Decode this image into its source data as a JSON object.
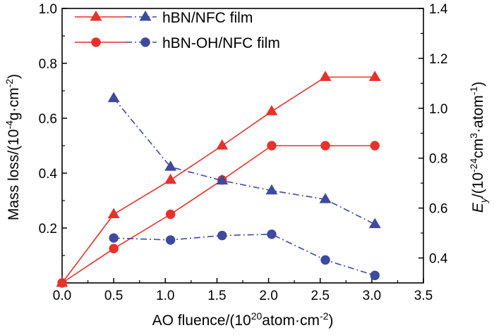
{
  "chart_data": {
    "type": "line",
    "x": [
      0.0,
      0.5,
      1.05,
      1.55,
      2.03,
      2.55,
      3.03
    ],
    "xlim": [
      0.0,
      3.5
    ],
    "xticks": [
      "0.0",
      "0.5",
      "1.0",
      "1.5",
      "2.0",
      "2.5",
      "3.0",
      "3.5"
    ],
    "xlabel": {
      "pre": "AO fluence/(10",
      "sup": "20",
      "post": "atom·cm",
      "sup2": "-2",
      "close": ")"
    },
    "y_left": {
      "label": {
        "pre": "Mass loss/(10",
        "sup": "-4",
        "mid": "g·cm",
        "sup2": "-2",
        "close": ")"
      },
      "lim": [
        0.0,
        1.0
      ],
      "ticks": [
        "0.2",
        "0.4",
        "0.6",
        "0.8",
        "1.0"
      ]
    },
    "y_right": {
      "label": {
        "var": "E",
        "sub": "y",
        "pre": "/(10",
        "sup": "-24",
        "mid": "cm",
        "sup2": "3",
        "mid2": "·atom",
        "sup3": "-1",
        "close": ")"
      },
      "lim": [
        0.3,
        1.4
      ],
      "ticks": [
        "0.4",
        "0.6",
        "0.8",
        "1.0",
        "1.2",
        "1.4"
      ]
    },
    "series": [
      {
        "name": "hBN/NFC film",
        "axis": "left",
        "marker": "triangle",
        "style": "solid",
        "color": "#e8312a",
        "x": [
          0.0,
          0.5,
          1.05,
          1.55,
          2.03,
          2.55,
          3.03
        ],
        "values": [
          0.0,
          0.25,
          0.375,
          0.5,
          0.625,
          0.75,
          0.75
        ]
      },
      {
        "name": "hBN-OH/NFC film",
        "axis": "left",
        "marker": "circle",
        "style": "solid",
        "color": "#e8312a",
        "x": [
          0.0,
          0.5,
          1.05,
          1.55,
          2.03,
          2.55,
          3.03
        ],
        "values": [
          0.0,
          0.125,
          0.25,
          0.375,
          0.5,
          0.5,
          0.5
        ]
      },
      {
        "name": "hBN/NFC film",
        "axis": "right",
        "marker": "triangle",
        "style": "dashdot",
        "color": "#3d4a9e",
        "x": [
          0.5,
          1.05,
          1.55,
          2.03,
          2.55,
          3.03
        ],
        "values": [
          1.04,
          0.765,
          0.71,
          0.67,
          0.635,
          0.535
        ]
      },
      {
        "name": "hBN-OH/NFC film",
        "axis": "right",
        "marker": "circle",
        "style": "dashdot",
        "color": "#3d4a9e",
        "x": [
          0.5,
          1.05,
          1.55,
          2.03,
          2.55,
          3.03
        ],
        "values": [
          0.48,
          0.472,
          0.49,
          0.495,
          0.392,
          0.33
        ]
      }
    ],
    "legend": {
      "position": "top-left",
      "entries": [
        {
          "label": "hBN/NFC film",
          "marker": "triangle"
        },
        {
          "label": "hBN-OH/NFC film",
          "marker": "circle"
        }
      ]
    },
    "grid": false
  }
}
